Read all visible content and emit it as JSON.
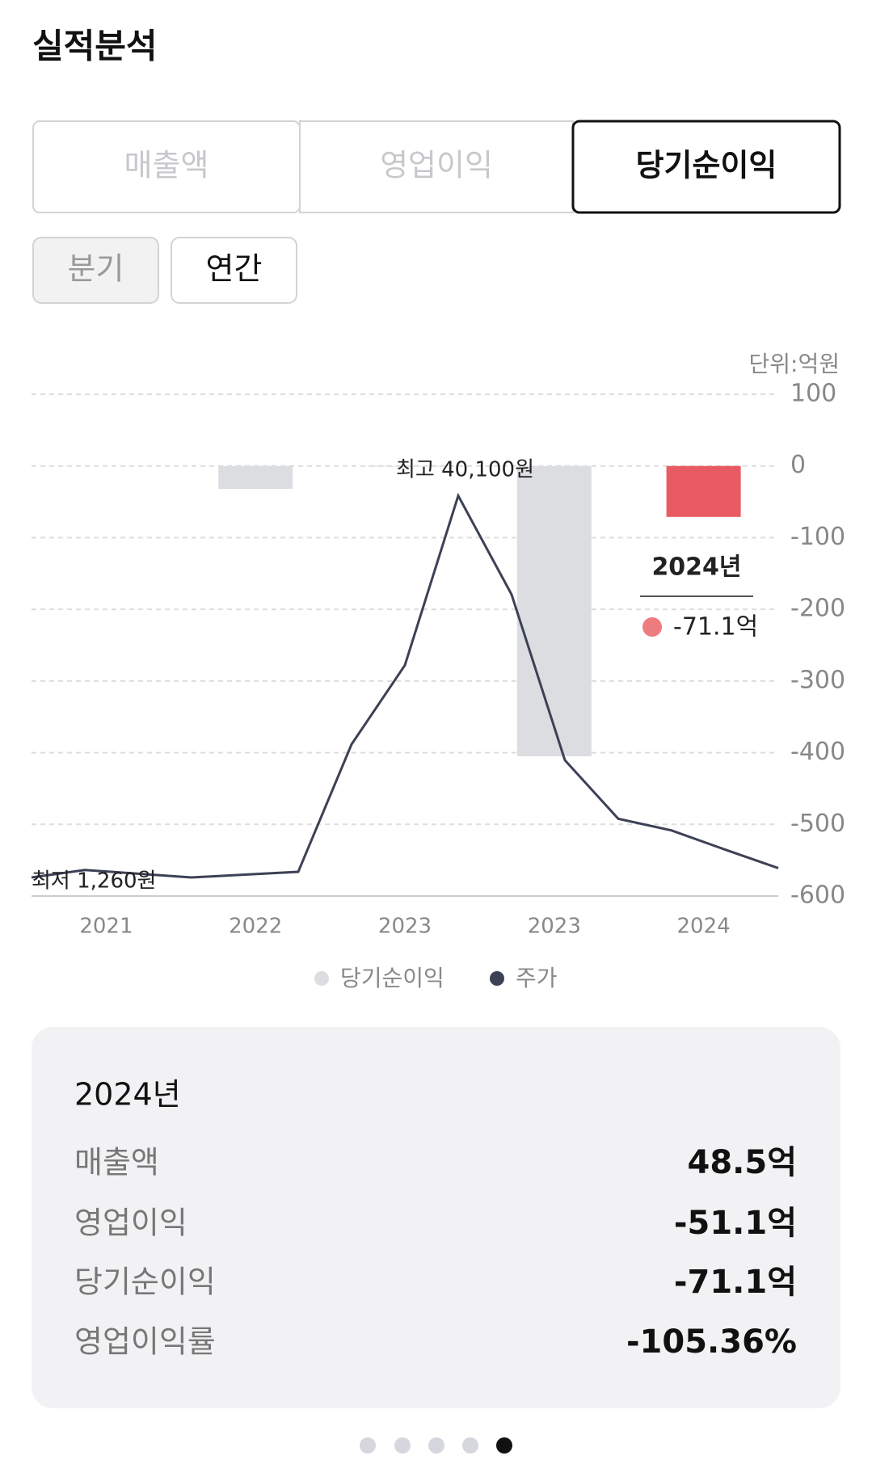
{
  "header": {
    "title": "실적분석"
  },
  "tabs": {
    "items": [
      "매출액",
      "영업이익",
      "당기순이익"
    ],
    "active": 2
  },
  "periods": {
    "items": [
      "분기",
      "연간"
    ],
    "active": 1
  },
  "chart_data": {
    "type": "bar",
    "unit": "단위:억원",
    "categories": [
      "2021",
      "2022",
      "2023",
      "2023",
      "2024"
    ],
    "series": [
      {
        "name": "당기순이익",
        "color": "#dcdde1",
        "values": [
          null,
          -32,
          -1,
          -405,
          -71.1
        ]
      }
    ],
    "highlight": 4,
    "highlight_color": "#e85b62",
    "line": {
      "name": "주가",
      "color": "#3d4156",
      "axis": "y2",
      "values": [
        1260,
        2018,
        1639,
        1260,
        1544,
        1828,
        14800,
        22850,
        40100,
        30050,
        13190,
        7230,
        6040,
        4100,
        2210
      ]
    },
    "ylim": [
      100,
      -600
    ],
    "yticks": [
      100,
      0,
      -100,
      -200,
      -300,
      -400,
      -500,
      -600
    ],
    "y2lim": [
      50420,
      -634
    ],
    "grid": true,
    "annotations": {
      "max": "최고 40,100원",
      "min": "최저 1,260원"
    },
    "tooltip": {
      "title": "2024년",
      "label": "-71.1억"
    }
  },
  "summary": {
    "title": "2024년",
    "rows": [
      [
        "매출액",
        "48.5억"
      ],
      [
        "영업이익",
        "-51.1억"
      ],
      [
        "당기순이익",
        "-71.1억"
      ],
      [
        "영업이익률",
        "-105.36%"
      ]
    ]
  }
}
